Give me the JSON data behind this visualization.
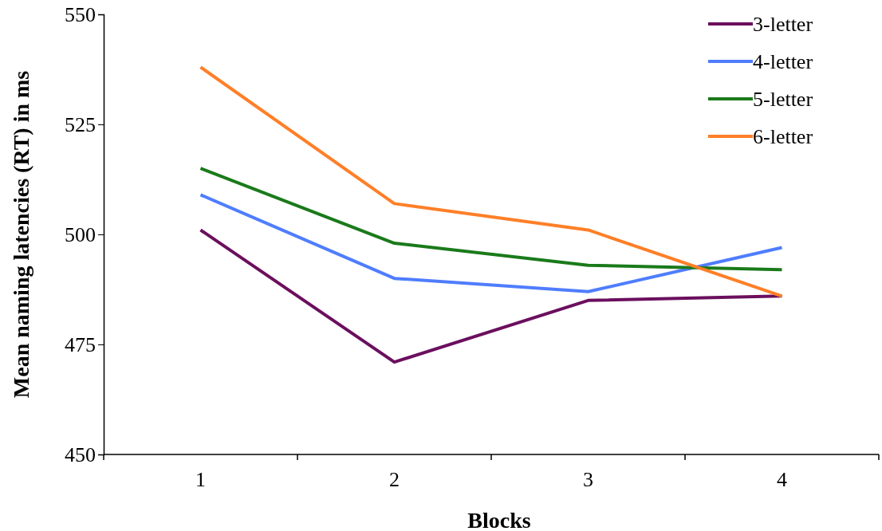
{
  "chart_data": {
    "type": "line",
    "xlabel": "Blocks",
    "ylabel": "Mean naming latencies (RT) in ms",
    "categories": [
      "1",
      "2",
      "3",
      "4"
    ],
    "series": [
      {
        "name": "3-letter",
        "color": "#6b0f5e",
        "values": [
          501,
          471,
          485,
          486
        ]
      },
      {
        "name": "4-letter",
        "color": "#4f7dff",
        "values": [
          509,
          490,
          487,
          497
        ]
      },
      {
        "name": "5-letter",
        "color": "#1a7a1a",
        "values": [
          515,
          498,
          493,
          492
        ]
      },
      {
        "name": "6-letter",
        "color": "#ff7f27",
        "values": [
          538,
          507,
          501,
          486
        ]
      }
    ],
    "ylim": [
      450,
      550
    ],
    "yticks": [
      450,
      475,
      500,
      525,
      550
    ],
    "grid": false,
    "legend": "top right",
    "marker": "none",
    "line_style": "solid"
  }
}
